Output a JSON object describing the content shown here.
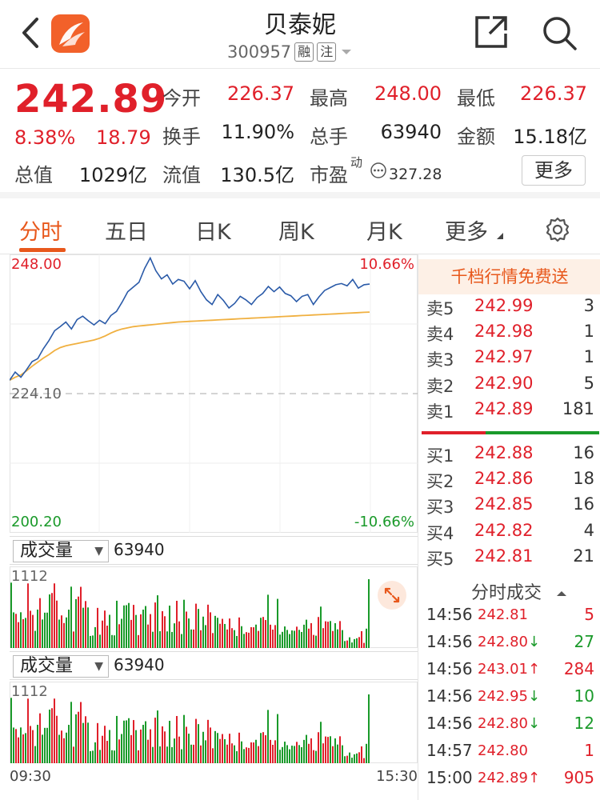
{
  "header": {
    "title": "贝泰妮",
    "code": "300957",
    "tag_rong": "融",
    "tag_zhu": "注"
  },
  "quote": {
    "price": "242.89",
    "change_pct": "8.38%",
    "change_amt": "18.79",
    "open_label": "今开",
    "open_value": "226.37",
    "high_label": "最高",
    "high_value": "248.00",
    "low_label": "最低",
    "low_value": "226.37",
    "turnover_label": "换手",
    "turnover_value": "11.90%",
    "volume_label": "总手",
    "volume_value": "63940",
    "amount_label": "金额",
    "amount_value": "15.18亿",
    "mktcap_label": "总值",
    "mktcap_value": "1029亿",
    "float_label": "流值",
    "float_value": "130.5亿",
    "pe_label": "市盈",
    "pe_sup": "动",
    "pe_value": "327.28",
    "more_label": "更多"
  },
  "tabs": [
    "分时",
    "五日",
    "日K",
    "周K",
    "月K",
    "更多"
  ],
  "chart": {
    "upper_price": "248.00",
    "upper_pct": "10.66%",
    "mid_price": "224.10",
    "lower_price": "200.20",
    "lower_pct": "-10.66%",
    "vol_select_1": "成交量",
    "vol_value_1": "63940",
    "vol_max_1": "1112",
    "vol_select_2": "成交量",
    "vol_value_2": "63940",
    "vol_max_2": "1112",
    "time_start": "09:30",
    "time_end": "15:30"
  },
  "chart_data": {
    "type": "line",
    "ylim": [
      200.2,
      248.0
    ],
    "prev_close": 224.1,
    "series": [
      {
        "values": [
          226.4,
          227.8,
          226.9,
          228.2,
          229.6,
          230.1,
          231.8,
          233.2,
          234.9,
          235.6,
          236.4,
          235.2,
          236.8,
          237.4,
          236.6,
          235.9,
          236.7,
          236.1,
          237.5,
          238.2,
          239.8,
          241.6,
          242.4,
          243.2,
          245.6,
          247.4,
          245.2,
          243.8,
          244.5,
          242.9,
          243.7,
          243.4,
          242.1,
          243.5,
          241.6,
          240.2,
          239.4,
          241.1,
          240.1,
          238.8,
          239.6,
          240.8,
          240.2,
          239.4,
          240.6,
          241.3,
          242.5,
          241.6,
          242.4,
          241.3,
          240.9,
          239.9,
          240.8,
          241.1,
          239.4,
          240.7,
          241.8,
          242.3,
          242.8,
          243.0,
          242.6,
          243.7,
          242.2,
          242.8,
          242.9
        ]
      },
      {
        "values": [
          226.4,
          226.9,
          227.3,
          228.0,
          228.8,
          229.5,
          230.2,
          230.8,
          231.5,
          232.0,
          232.3,
          232.5,
          232.7,
          232.9,
          233.1,
          233.3,
          233.6,
          234.0,
          234.5,
          234.9,
          235.2,
          235.4,
          235.6,
          235.7,
          235.8,
          235.9,
          236.0,
          236.1,
          236.2,
          236.3,
          236.4,
          236.45,
          236.5,
          236.55,
          236.6,
          236.65,
          236.7,
          236.75,
          236.8,
          236.85,
          236.9,
          236.95,
          237.0,
          237.05,
          237.1,
          237.15,
          237.2,
          237.25,
          237.3,
          237.35,
          237.4,
          237.45,
          237.5,
          237.55,
          237.6,
          237.65,
          237.7,
          237.75,
          237.8,
          237.85,
          237.9,
          237.95,
          238.0,
          238.05,
          238.1
        ]
      }
    ]
  },
  "book": {
    "banner": "千档行情免费送",
    "asks": [
      {
        "label": "卖5",
        "price": "242.99",
        "qty": "3"
      },
      {
        "label": "卖4",
        "price": "242.98",
        "qty": "1"
      },
      {
        "label": "卖3",
        "price": "242.97",
        "qty": "1"
      },
      {
        "label": "卖2",
        "price": "242.90",
        "qty": "5"
      },
      {
        "label": "卖1",
        "price": "242.89",
        "qty": "181"
      }
    ],
    "bids": [
      {
        "label": "买1",
        "price": "242.88",
        "qty": "16"
      },
      {
        "label": "买2",
        "price": "242.86",
        "qty": "18"
      },
      {
        "label": "买3",
        "price": "242.85",
        "qty": "16"
      },
      {
        "label": "买4",
        "price": "242.82",
        "qty": "4"
      },
      {
        "label": "买5",
        "price": "242.81",
        "qty": "21"
      }
    ],
    "trades_title": "分时成交",
    "trades": [
      {
        "time": "14:56",
        "price": "242.81",
        "arrow": "",
        "qty": "5",
        "color": "red"
      },
      {
        "time": "14:56",
        "price": "242.80",
        "arrow": "↓",
        "qty": "27",
        "color": "green"
      },
      {
        "time": "14:56",
        "price": "243.01",
        "arrow": "↑",
        "qty": "284",
        "color": "red"
      },
      {
        "time": "14:56",
        "price": "242.95",
        "arrow": "↓",
        "qty": "10",
        "color": "green"
      },
      {
        "time": "14:56",
        "price": "242.80",
        "arrow": "↓",
        "qty": "12",
        "color": "green"
      },
      {
        "time": "14:57",
        "price": "242.80",
        "arrow": "",
        "qty": "1",
        "color": "red"
      },
      {
        "time": "15:00",
        "price": "242.89",
        "arrow": "↑",
        "qty": "905",
        "color": "red"
      }
    ]
  },
  "colors": {
    "up": "#e0202a",
    "down": "#1a9a2a",
    "accent": "#e8581c",
    "price_line": "#2a5aa8",
    "avg_line": "#f0b040"
  }
}
